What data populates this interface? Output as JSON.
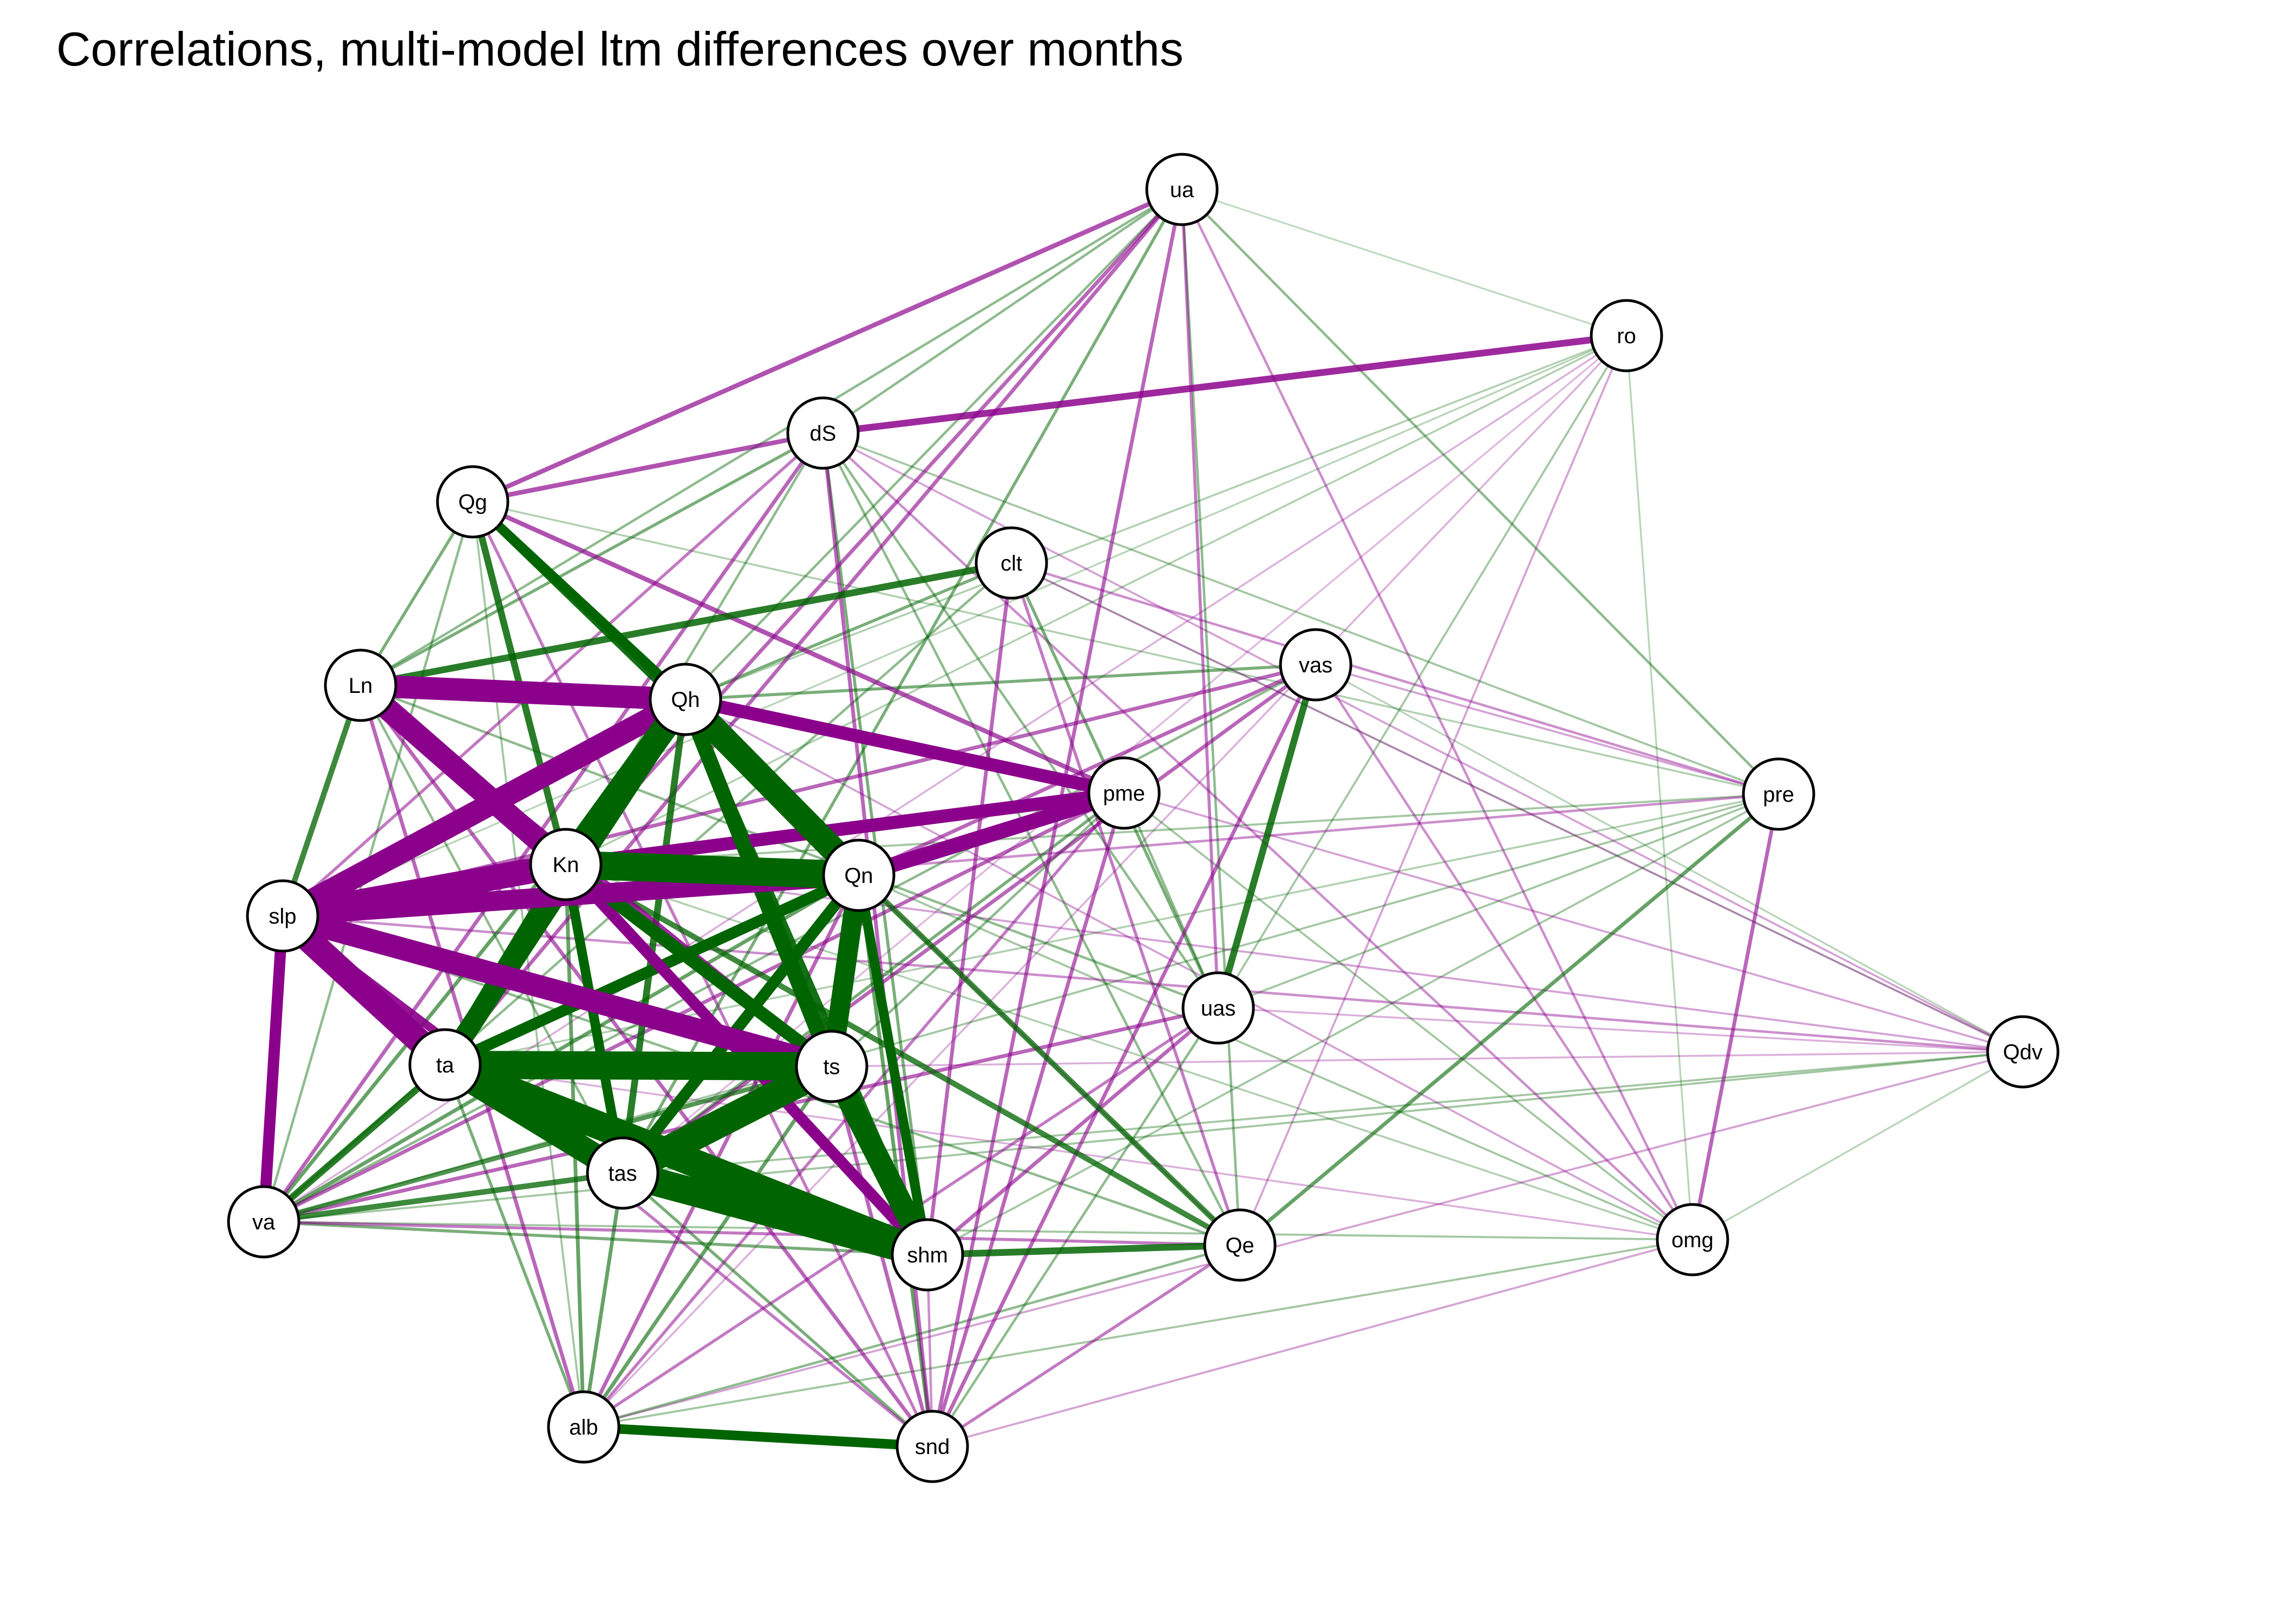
{
  "title": "Correlations, multi-model ltm differences over months",
  "colors": {
    "positive": "#006400",
    "negative": "#8B008B"
  },
  "nodes": [
    {
      "id": "ua",
      "label": "ua"
    },
    {
      "id": "ro",
      "label": "ro"
    },
    {
      "id": "dS",
      "label": "dS"
    },
    {
      "id": "Qg",
      "label": "Qg"
    },
    {
      "id": "clt",
      "label": "clt"
    },
    {
      "id": "vas",
      "label": "vas"
    },
    {
      "id": "Ln",
      "label": "Ln"
    },
    {
      "id": "Qh",
      "label": "Qh"
    },
    {
      "id": "pme",
      "label": "pme"
    },
    {
      "id": "pre",
      "label": "pre"
    },
    {
      "id": "Kn",
      "label": "Kn"
    },
    {
      "id": "Qn",
      "label": "Qn"
    },
    {
      "id": "slp",
      "label": "slp"
    },
    {
      "id": "uas",
      "label": "uas"
    },
    {
      "id": "Qdv",
      "label": "Qdv"
    },
    {
      "id": "ta",
      "label": "ta"
    },
    {
      "id": "ts",
      "label": "ts"
    },
    {
      "id": "tas",
      "label": "tas"
    },
    {
      "id": "va",
      "label": "va"
    },
    {
      "id": "shm",
      "label": "shm"
    },
    {
      "id": "Qe",
      "label": "Qe"
    },
    {
      "id": "omg",
      "label": "omg"
    },
    {
      "id": "alb",
      "label": "alb"
    },
    {
      "id": "snd",
      "label": "snd"
    }
  ],
  "edges": [
    [
      "ta",
      "ts",
      0.95
    ],
    [
      "ta",
      "shm",
      0.95
    ],
    [
      "tas",
      "ts",
      0.95
    ],
    [
      "tas",
      "shm",
      0.95
    ],
    [
      "ta",
      "tas",
      0.9
    ],
    [
      "Kn",
      "Qn",
      0.95
    ],
    [
      "Qh",
      "Kn",
      0.9
    ],
    [
      "Qh",
      "Qn",
      0.9
    ],
    [
      "Qh",
      "ta",
      0.8
    ],
    [
      "Qh",
      "ts",
      0.7
    ],
    [
      "ts",
      "shm",
      0.85
    ],
    [
      "Qn",
      "ts",
      0.8
    ],
    [
      "Kn",
      "ta",
      0.7
    ],
    [
      "Kn",
      "ts",
      0.65
    ],
    [
      "Qn",
      "ta",
      0.6
    ],
    [
      "Qn",
      "tas",
      0.6
    ],
    [
      "Kn",
      "tas",
      0.55
    ],
    [
      "Kn",
      "shm",
      0.55
    ],
    [
      "Qn",
      "shm",
      0.55
    ],
    [
      "Qh",
      "tas",
      0.45
    ],
    [
      "Qg",
      "Qh",
      0.55
    ],
    [
      "Qg",
      "Qn",
      0.5
    ],
    [
      "Qg",
      "Kn",
      0.45
    ],
    [
      "alb",
      "snd",
      0.55
    ],
    [
      "Qh",
      "shm",
      0.5
    ],
    [
      "Kn",
      "Qe",
      0.4
    ],
    [
      "Qn",
      "Qe",
      0.4
    ],
    [
      "vas",
      "uas",
      0.45
    ],
    [
      "Ln",
      "clt",
      0.45
    ],
    [
      "shm",
      "Qe",
      0.45
    ],
    [
      "Ln",
      "slp",
      0.4
    ],
    [
      "va",
      "ta",
      0.45
    ],
    [
      "va",
      "tas",
      0.4
    ],
    [
      "va",
      "ts",
      0.35
    ],
    [
      "va",
      "Qn",
      0.3
    ],
    [
      "va",
      "shm",
      0.25
    ],
    [
      "Ln",
      "Qh",
      0.3
    ],
    [
      "pre",
      "Qe",
      0.3
    ],
    [
      "Kn",
      "alb",
      0.3
    ],
    [
      "Qn",
      "snd",
      0.3
    ],
    [
      "ts",
      "alb",
      0.3
    ],
    [
      "tas",
      "alb",
      0.3
    ],
    [
      "ta",
      "alb",
      0.25
    ],
    [
      "tas",
      "snd",
      0.25
    ],
    [
      "Qh",
      "va",
      0.3
    ],
    [
      "ua",
      "pre",
      0.2
    ],
    [
      "ua",
      "Qe",
      0.2
    ],
    [
      "ro",
      "omg",
      0.1
    ],
    [
      "ro",
      "uas",
      0.15
    ],
    [
      "vas",
      "va",
      0.2
    ],
    [
      "dS",
      "Qe",
      0.2
    ],
    [
      "dS",
      "shm",
      0.25
    ],
    [
      "dS",
      "Ln",
      0.25
    ],
    [
      "dS",
      "Kn",
      0.2
    ],
    [
      "dS",
      "uas",
      0.2
    ],
    [
      "clt",
      "va",
      0.2
    ],
    [
      "clt",
      "Qh",
      0.25
    ],
    [
      "clt",
      "uas",
      0.25
    ],
    [
      "vas",
      "Qh",
      0.25
    ],
    [
      "pme",
      "omg",
      0.15
    ],
    [
      "pre",
      "va",
      0.15
    ],
    [
      "pre",
      "Kn",
      0.15
    ],
    [
      "pre",
      "shm",
      0.15
    ],
    [
      "pre",
      "ta",
      0.12
    ],
    [
      "Qg",
      "va",
      0.2
    ],
    [
      "Qg",
      "Ln",
      0.25
    ],
    [
      "Qg",
      "alb",
      0.15
    ],
    [
      "Qe",
      "alb",
      0.2
    ],
    [
      "uas",
      "snd",
      0.2
    ],
    [
      "Ln",
      "tas",
      0.2
    ],
    [
      "slp",
      "Kn",
      -0.9
    ],
    [
      "slp",
      "Qh",
      -0.85
    ],
    [
      "slp",
      "ta",
      -0.9
    ],
    [
      "slp",
      "ts",
      -0.85
    ],
    [
      "Ln",
      "Qh",
      -0.85
    ],
    [
      "Ln",
      "Kn",
      -0.85
    ],
    [
      "slp",
      "Qn",
      -0.8
    ],
    [
      "Qh",
      "pme",
      -0.65
    ],
    [
      "Kn",
      "pme",
      -0.65
    ],
    [
      "Qn",
      "pme",
      -0.7
    ],
    [
      "Kn",
      "shm",
      -0.6
    ],
    [
      "slp",
      "va",
      -0.6
    ],
    [
      "ta",
      "Kn",
      -0.4
    ],
    [
      "Ln",
      "ts",
      -0.45
    ],
    [
      "slp",
      "tas",
      -0.5
    ],
    [
      "dS",
      "ro",
      -0.45
    ],
    [
      "Qg",
      "pme",
      -0.35
    ],
    [
      "Qg",
      "dS",
      -0.35
    ],
    [
      "ua",
      "Qg",
      -0.35
    ],
    [
      "pme",
      "va",
      -0.3
    ],
    [
      "vas",
      "ta",
      -0.3
    ],
    [
      "vas",
      "slp",
      -0.3
    ],
    [
      "vas",
      "tas",
      -0.3
    ],
    [
      "clt",
      "shm",
      -0.3
    ],
    [
      "dS",
      "slp",
      -0.25
    ],
    [
      "dS",
      "snd",
      -0.3
    ],
    [
      "pme",
      "alb",
      -0.25
    ],
    [
      "uas",
      "va",
      -0.3
    ],
    [
      "uas",
      "alb",
      -0.25
    ],
    [
      "Qe",
      "va",
      -0.25
    ],
    [
      "Qe",
      "snd",
      -0.25
    ],
    [
      "ua",
      "snd",
      -0.3
    ],
    [
      "ua",
      "ta",
      -0.3
    ],
    [
      "ua",
      "Kn",
      -0.3
    ],
    [
      "dS",
      "va",
      -0.3
    ],
    [
      "Ln",
      "alb",
      -0.3
    ],
    [
      "Ln",
      "snd",
      -0.3
    ],
    [
      "clt",
      "Qe",
      -0.25
    ],
    [
      "vas",
      "snd",
      -0.3
    ],
    [
      "pme",
      "snd",
      -0.3
    ],
    [
      "Qg",
      "snd",
      -0.25
    ],
    [
      "ts",
      "snd",
      -0.3
    ],
    [
      "shm",
      "snd",
      -0.2
    ],
    [
      "slp",
      "snd",
      -0.25
    ],
    [
      "Qn",
      "alb",
      -0.3
    ],
    [
      "Qdv",
      "slp",
      -0.2
    ],
    [
      "Qdv",
      "Kn",
      -0.15
    ],
    [
      "Qdv",
      "alb",
      -0.15
    ],
    [
      "Qdv",
      "ts",
      -0.12
    ],
    [
      "pre",
      "omg",
      -0.3
    ],
    [
      "pre",
      "slp",
      -0.2
    ],
    [
      "omg",
      "ta",
      -0.12
    ],
    [
      "omg",
      "Qh",
      -0.15
    ],
    [
      "omg",
      "snd",
      -0.15
    ],
    [
      "ro",
      "Qe",
      -0.15
    ],
    [
      "ro",
      "alb",
      -0.12
    ],
    [
      "vas",
      "pre",
      -0.15
    ],
    [
      "clt",
      "pre",
      -0.2
    ],
    [
      "ua",
      "uas",
      -0.25
    ],
    [
      "ua",
      "omg",
      -0.2
    ],
    [
      "ro",
      "va",
      -0.12
    ],
    [
      "ro",
      "tas",
      -0.1
    ],
    [
      "pme",
      "Qdv",
      -0.15
    ],
    [
      "uas",
      "Qdv",
      -0.12
    ],
    [
      "clt",
      "Qdv",
      -0.15
    ],
    [
      "dS",
      "Qdv",
      -0.15
    ],
    [
      "vas",
      "omg",
      -0.2
    ],
    [
      "dS",
      "omg",
      -0.2
    ],
    [
      "Qg",
      "Qe",
      -0.15
    ],
    [
      "uas",
      "shm",
      -0.3
    ],
    [
      "pre",
      "uas",
      0.15
    ],
    [
      "Qdv",
      "va",
      0.15
    ],
    [
      "Qdv",
      "tas",
      0.15
    ],
    [
      "omg",
      "Qdv",
      0.1
    ],
    [
      "omg",
      "alb",
      0.15
    ],
    [
      "ua",
      "ro",
      0.08
    ],
    [
      "ua",
      "dS",
      0.2
    ],
    [
      "ua",
      "Ln",
      0.2
    ],
    [
      "ua",
      "Qh",
      0.2
    ],
    [
      "ua",
      "tas",
      0.25
    ],
    [
      "ro",
      "slp",
      0.1
    ],
    [
      "ro",
      "Kn",
      0.12
    ],
    [
      "ro",
      "Qh",
      0.12
    ],
    [
      "clt",
      "Qdv",
      0.1
    ],
    [
      "vas",
      "Qdv",
      0.1
    ],
    [
      "omg",
      "va",
      0.15
    ],
    [
      "omg",
      "Kn",
      0.12
    ],
    [
      "omg",
      "Qn",
      0.15
    ],
    [
      "pre",
      "dS",
      0.15
    ],
    [
      "pre",
      "Qg",
      0.12
    ],
    [
      "pme",
      "uas",
      0.2
    ],
    [
      "pme",
      "tas",
      0.25
    ],
    [
      "pme",
      "ts",
      0.2
    ],
    [
      "Qe",
      "slp",
      0.2
    ],
    [
      "uas",
      "Ln",
      0.2
    ]
  ]
}
